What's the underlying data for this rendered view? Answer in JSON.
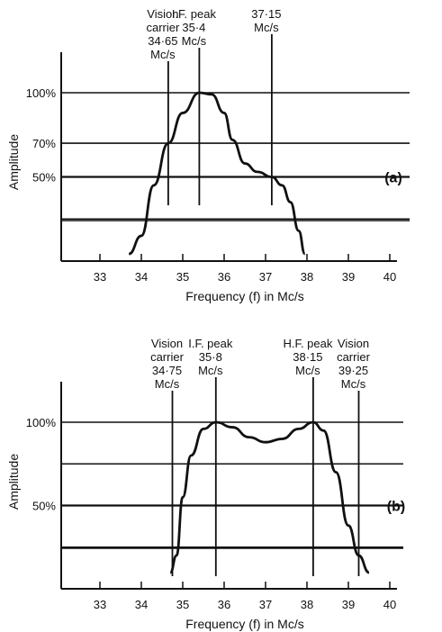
{
  "chart_data": [
    {
      "type": "line",
      "panel_label": "(a)",
      "xlabel": "Frequency (f) in Mc/s",
      "ylabel": "Amplitude",
      "xlim": [
        32,
        40
      ],
      "ylim": [
        0,
        100
      ],
      "x_ticks": [
        "33",
        "34",
        "35",
        "36",
        "37",
        "38",
        "39",
        "40"
      ],
      "y_tick_labels": [
        {
          "value": 100,
          "label": "100%"
        },
        {
          "value": 70,
          "label": "70%"
        },
        {
          "value": 50,
          "label": "50%"
        }
      ],
      "gridlines": [
        0,
        25,
        50,
        70,
        100
      ],
      "grid": true,
      "series": [
        {
          "x": [
            33.7,
            34.0,
            34.3,
            34.65,
            35.0,
            35.4,
            35.7,
            36.0,
            36.2,
            36.5,
            36.8,
            37.15,
            37.4,
            37.6,
            37.8,
            37.95
          ],
          "y": [
            -10,
            15,
            45,
            70,
            88,
            100,
            99,
            88,
            72,
            58,
            53,
            50,
            45,
            35,
            18,
            -12
          ]
        }
      ],
      "markers": [
        {
          "x": 34.65,
          "lines": [
            "Vision",
            "carrier",
            "34·65",
            "Mc/s"
          ]
        },
        {
          "x": 35.4,
          "lines": [
            "I.F. peak",
            "35·4",
            "Mc/s"
          ]
        },
        {
          "x": 37.15,
          "lines": [
            "37·15",
            "Mc/s"
          ]
        }
      ]
    },
    {
      "type": "line",
      "panel_label": "(b)",
      "xlabel": "Frequency (f) in Mc/s",
      "ylabel": "Amplitude",
      "xlim": [
        32,
        40
      ],
      "ylim": [
        0,
        100
      ],
      "x_ticks": [
        "33",
        "34",
        "35",
        "36",
        "37",
        "38",
        "39",
        "40"
      ],
      "y_tick_labels": [
        {
          "value": 100,
          "label": "100%"
        },
        {
          "value": 50,
          "label": "50%"
        }
      ],
      "gridlines": [
        0,
        25,
        50,
        75,
        100
      ],
      "grid": true,
      "series": [
        {
          "x": [
            34.7,
            34.85,
            35.0,
            35.2,
            35.5,
            35.8,
            36.2,
            36.6,
            37.0,
            37.4,
            37.8,
            38.15,
            38.4,
            38.7,
            39.0,
            39.25,
            39.5
          ],
          "y": [
            -15,
            20,
            55,
            80,
            96,
            100,
            97,
            91,
            88,
            90,
            96,
            100,
            95,
            70,
            38,
            20,
            -12
          ]
        }
      ],
      "markers": [
        {
          "x": 34.75,
          "lines": [
            "Vision",
            "carrier",
            "34·75",
            "Mc/s"
          ]
        },
        {
          "x": 35.8,
          "lines": [
            "I.F. peak",
            "35·8",
            "Mc/s"
          ]
        },
        {
          "x": 38.15,
          "lines": [
            "H.F. peak",
            "38·15",
            "Mc/s"
          ]
        },
        {
          "x": 39.25,
          "lines": [
            "Vision",
            "carrier",
            "39·25",
            "Mc/s"
          ]
        }
      ]
    }
  ]
}
